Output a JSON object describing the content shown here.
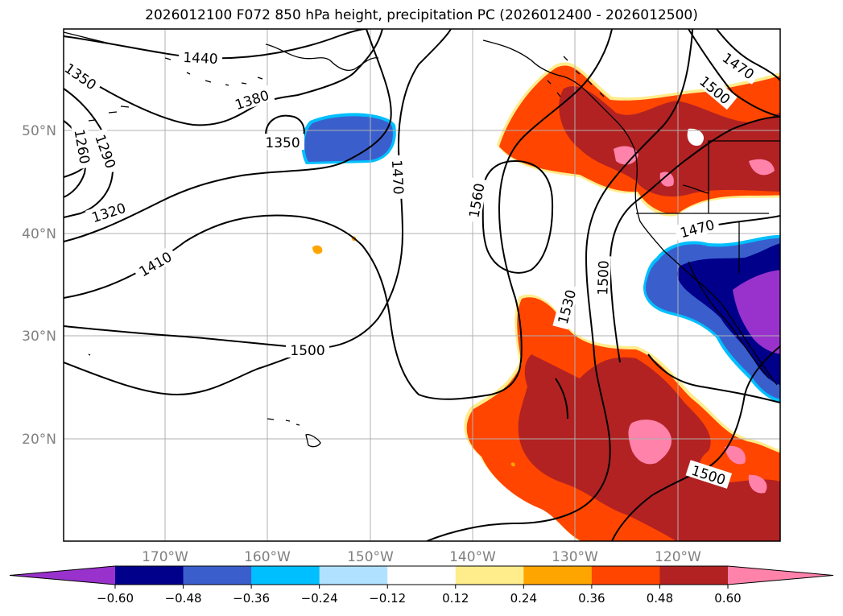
{
  "title": "2026012100 F072 850 hPa height, precipitation PC (2026012400 - 2026012500)",
  "colors": {
    "frame": "#000000",
    "grid": "#b0b0b0",
    "tick_text": "#808080",
    "contour": "#000000",
    "coast": "#000000"
  },
  "axes": {
    "lat_ticks": [
      "50°N",
      "40°N",
      "30°N",
      "20°N"
    ],
    "lon_ticks": [
      "170°W",
      "160°W",
      "150°W",
      "140°W",
      "130°W",
      "120°W"
    ]
  },
  "contour_labels": [
    "1440",
    "1350",
    "1380",
    "1260",
    "1290",
    "1350",
    "1320",
    "1410",
    "1500",
    "1470",
    "1560",
    "1470",
    "1500",
    "1530",
    "1500",
    "1470",
    "1500"
  ],
  "colorbar": {
    "ticks": [
      "−0.60",
      "−0.48",
      "−0.36",
      "−0.24",
      "−0.12",
      "0.12",
      "0.24",
      "0.36",
      "0.48",
      "0.60"
    ],
    "colors": [
      "#9932cc",
      "#00008b",
      "#3a5fcd",
      "#00bfff",
      "#b0e2ff",
      "#ffffff",
      "#ffec8b",
      "#ffa500",
      "#ff4500",
      "#b22222",
      "#ff82ab"
    ]
  }
}
